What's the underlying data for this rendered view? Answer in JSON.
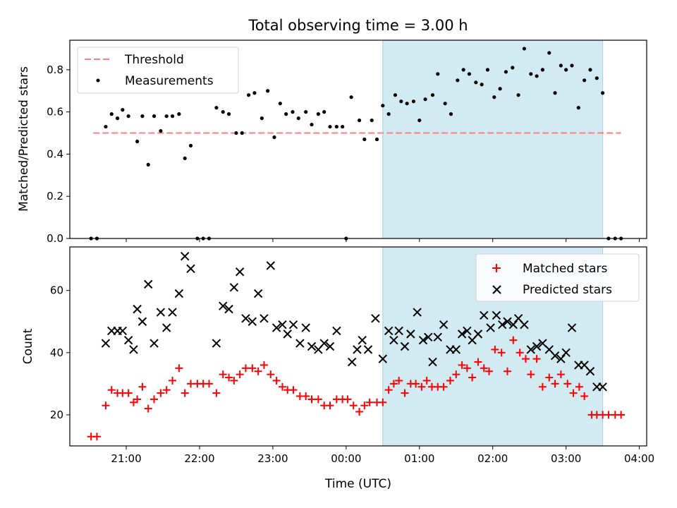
{
  "chart_data": [
    {
      "type": "scatter",
      "title": "Total observing time = 3.00 h",
      "xlabel": "",
      "ylabel": "Matched/Predicted stars",
      "x_unit": "hours UTC (continuing past midnight)",
      "xlim": [
        20.23,
        28.1
      ],
      "ylim": [
        0,
        0.94
      ],
      "yticks": [
        0.0,
        0.2,
        0.4,
        0.6,
        0.8
      ],
      "ytick_labels": [
        "0.0",
        "0.2",
        "0.4",
        "0.6",
        "0.8"
      ],
      "highlight_span": {
        "x_start": 24.5,
        "x_end": 27.5,
        "color": "#add8e6"
      },
      "threshold": {
        "name": "Threshold",
        "value": 0.5,
        "x_start": 20.55,
        "x_end": 27.75,
        "color": "#ff7f7f"
      },
      "legend": {
        "placement": "upper left",
        "items": [
          "Threshold",
          "Measurements"
        ]
      },
      "series": [
        {
          "name": "Measurements",
          "color": "#000000",
          "x": [
            20.52,
            20.6,
            20.72,
            20.8,
            20.88,
            20.95,
            21.03,
            21.15,
            21.22,
            21.3,
            21.38,
            21.47,
            21.55,
            21.63,
            21.72,
            21.8,
            21.88,
            21.97,
            22.05,
            22.13,
            22.23,
            22.32,
            22.4,
            22.5,
            22.58,
            22.67,
            22.75,
            22.85,
            22.93,
            23.02,
            23.1,
            23.18,
            23.27,
            23.35,
            23.45,
            23.53,
            23.62,
            23.7,
            23.78,
            23.87,
            23.95,
            24.0,
            24.07,
            24.18,
            24.25,
            24.35,
            24.42,
            24.5,
            24.58,
            24.67,
            24.75,
            24.83,
            24.92,
            25.0,
            25.08,
            25.18,
            25.25,
            25.35,
            25.43,
            25.52,
            25.6,
            25.68,
            25.77,
            25.85,
            25.93,
            26.02,
            26.1,
            26.18,
            26.27,
            26.35,
            26.43,
            26.52,
            26.6,
            26.68,
            26.77,
            26.85,
            26.93,
            27.0,
            27.08,
            27.17,
            27.25,
            27.33,
            27.42,
            27.5,
            27.58,
            27.67,
            27.75
          ],
          "y": [
            0.0,
            0.0,
            0.53,
            0.59,
            0.57,
            0.61,
            0.58,
            0.46,
            0.58,
            0.35,
            0.58,
            0.51,
            0.58,
            0.58,
            0.59,
            0.38,
            0.44,
            0.0,
            0.0,
            0.0,
            0.62,
            0.6,
            0.59,
            0.5,
            0.5,
            0.68,
            0.69,
            0.57,
            0.7,
            0.48,
            0.64,
            0.59,
            0.6,
            0.57,
            0.6,
            0.54,
            0.59,
            0.6,
            0.53,
            0.53,
            0.53,
            0.0,
            0.67,
            0.56,
            0.47,
            0.56,
            0.47,
            0.63,
            0.59,
            0.68,
            0.65,
            0.64,
            0.65,
            0.56,
            0.66,
            0.68,
            0.78,
            0.64,
            0.59,
            0.75,
            0.8,
            0.78,
            0.74,
            0.73,
            0.8,
            0.67,
            0.71,
            0.79,
            0.81,
            0.68,
            0.9,
            0.78,
            0.77,
            0.8,
            0.88,
            0.69,
            0.82,
            0.8,
            0.82,
            0.62,
            0.75,
            0.8,
            0.76,
            0.69,
            0.0,
            0.0,
            0.0
          ]
        }
      ]
    },
    {
      "type": "scatter",
      "title": "",
      "xlabel": "Time (UTC)",
      "ylabel": "Count",
      "x_unit": "hours UTC (continuing past midnight)",
      "xlim": [
        20.23,
        28.1
      ],
      "ylim": [
        10,
        74
      ],
      "xticks": [
        21,
        22,
        23,
        24,
        25,
        26,
        27,
        28
      ],
      "xtick_labels": [
        "21:00",
        "22:00",
        "23:00",
        "00:00",
        "01:00",
        "02:00",
        "03:00",
        "04:00"
      ],
      "yticks": [
        20,
        40,
        60
      ],
      "ytick_labels": [
        "20",
        "40",
        "60"
      ],
      "highlight_span": {
        "x_start": 24.5,
        "x_end": 27.5,
        "color": "#add8e6"
      },
      "legend": {
        "placement": "upper right",
        "items": [
          "Matched stars",
          "Predicted stars"
        ]
      },
      "series": [
        {
          "name": "Matched stars",
          "marker": "+",
          "color": "#ff0000",
          "x": [
            20.52,
            20.6,
            20.72,
            20.8,
            20.88,
            20.95,
            21.03,
            21.1,
            21.15,
            21.22,
            21.3,
            21.38,
            21.47,
            21.55,
            21.63,
            21.72,
            21.8,
            21.88,
            21.97,
            22.05,
            22.13,
            22.23,
            22.32,
            22.4,
            22.47,
            22.55,
            22.63,
            22.72,
            22.8,
            22.88,
            22.97,
            23.05,
            23.13,
            23.2,
            23.28,
            23.37,
            23.45,
            23.53,
            23.62,
            23.7,
            23.78,
            23.87,
            23.95,
            24.02,
            24.1,
            24.18,
            24.25,
            24.32,
            24.42,
            24.5,
            24.58,
            24.65,
            24.72,
            24.8,
            24.88,
            24.95,
            25.03,
            25.1,
            25.17,
            25.25,
            25.33,
            25.42,
            25.5,
            25.58,
            25.65,
            25.72,
            25.8,
            25.88,
            25.95,
            26.03,
            26.12,
            26.2,
            26.28,
            26.37,
            26.45,
            26.52,
            26.6,
            26.68,
            26.77,
            26.85,
            26.93,
            27.02,
            27.1,
            27.18,
            27.25,
            27.35,
            27.42,
            27.5,
            27.58,
            27.67,
            27.75
          ],
          "y": [
            13,
            13,
            23,
            28,
            27,
            27,
            27,
            24,
            25,
            29,
            22,
            25,
            27,
            28,
            31,
            35,
            27,
            30,
            30,
            30,
            30,
            27,
            33,
            32,
            31,
            33,
            35,
            35,
            34,
            36,
            33,
            31,
            29,
            28,
            28,
            26,
            26,
            25,
            25,
            23,
            23,
            25,
            25,
            25,
            23,
            21,
            23,
            24,
            24,
            24,
            28,
            30,
            31,
            27,
            30,
            30,
            29,
            31,
            29,
            29,
            29,
            31,
            33,
            36,
            35,
            32,
            37,
            35,
            34,
            41,
            40,
            34,
            44,
            40,
            38,
            33,
            38,
            29,
            32,
            30,
            33,
            30,
            27,
            29,
            26,
            20,
            20,
            20,
            20,
            20,
            20
          ]
        },
        {
          "name": "Predicted stars",
          "marker": "x",
          "color": "#000000",
          "x": [
            20.72,
            20.8,
            20.88,
            20.95,
            21.03,
            21.1,
            21.15,
            21.22,
            21.3,
            21.38,
            21.47,
            21.55,
            21.63,
            21.72,
            21.8,
            21.88,
            22.23,
            22.32,
            22.4,
            22.47,
            22.55,
            22.63,
            22.72,
            22.8,
            22.88,
            22.97,
            23.05,
            23.13,
            23.2,
            23.28,
            23.37,
            23.45,
            23.53,
            23.62,
            23.7,
            23.78,
            23.87,
            24.08,
            24.15,
            24.22,
            24.3,
            24.4,
            24.5,
            24.58,
            24.65,
            24.72,
            24.8,
            24.88,
            24.97,
            25.05,
            25.12,
            25.18,
            25.25,
            25.33,
            25.42,
            25.5,
            25.58,
            25.65,
            25.72,
            25.8,
            25.88,
            25.97,
            26.05,
            26.13,
            26.2,
            26.28,
            26.35,
            26.43,
            26.52,
            26.6,
            26.68,
            26.77,
            26.85,
            26.93,
            27.0,
            27.08,
            27.17,
            27.25,
            27.33,
            27.42,
            27.5
          ],
          "y": [
            43,
            47,
            47,
            47,
            44,
            41,
            54,
            50,
            62,
            43,
            53,
            48,
            53,
            59,
            71,
            67,
            43,
            55,
            54,
            61,
            66,
            51,
            50,
            59,
            51,
            68,
            48,
            49,
            46,
            49,
            43,
            48,
            42,
            41,
            43,
            42,
            47,
            37,
            41,
            44,
            41,
            51,
            38,
            47,
            44,
            47,
            42,
            46,
            53,
            44,
            45,
            37,
            45,
            49,
            41,
            41,
            46,
            47,
            44,
            46,
            52,
            48,
            52,
            49,
            50,
            49,
            51,
            49,
            41,
            42,
            43,
            41,
            39,
            38,
            40,
            48,
            36,
            36,
            34,
            29,
            29
          ]
        }
      ]
    }
  ]
}
